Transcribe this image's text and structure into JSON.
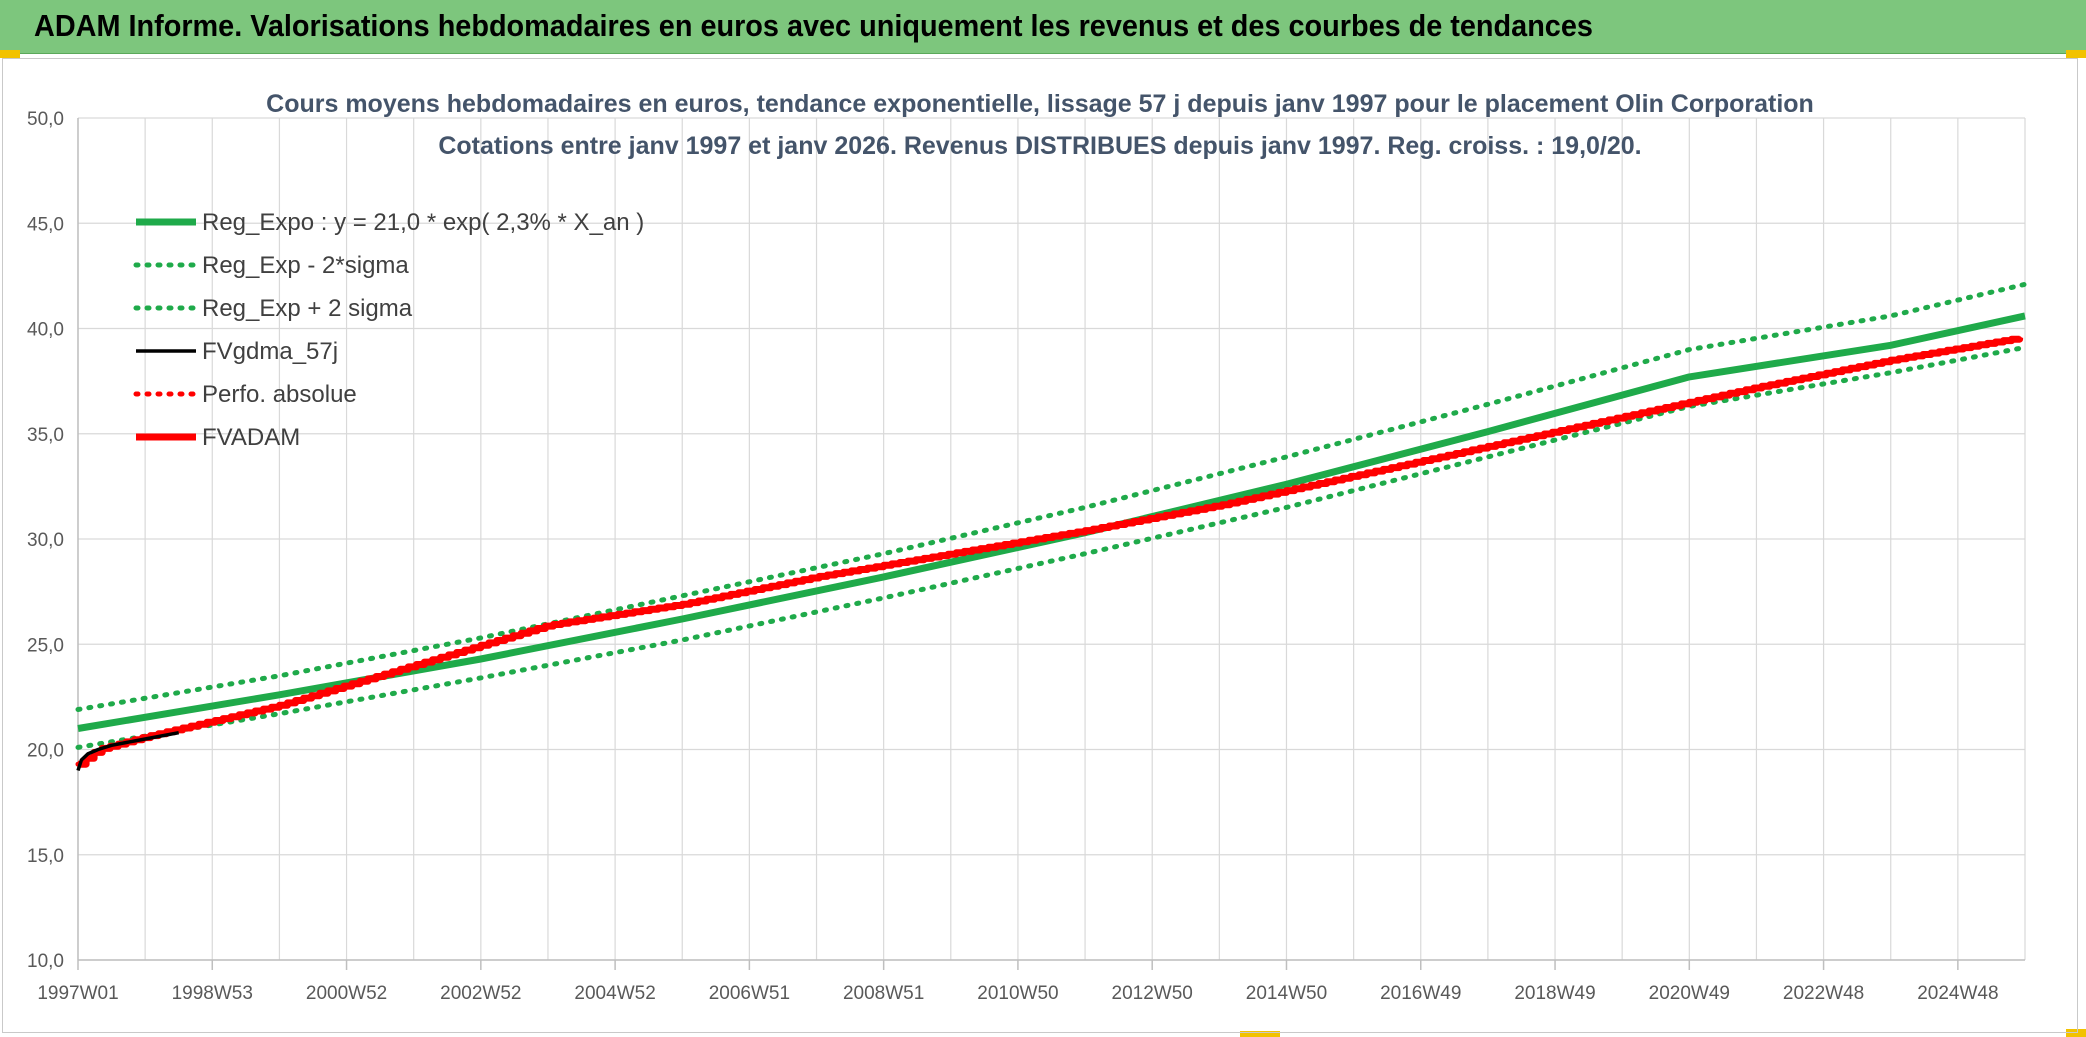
{
  "banner": {
    "title": "ADAM Informe. Valorisations hebdomadaires en euros avec uniquement les revenus et des courbes de tendances"
  },
  "colors": {
    "banner_bg": "#7dc67d",
    "accent_yellow": "#f2c200",
    "reg_green": "#1faa4a",
    "adam_red": "#ff0000",
    "gdma_black": "#000000",
    "grid": "#d9d9d9"
  },
  "chart_data": {
    "type": "line",
    "title": "Cours moyens hebdomadaires en euros, tendance exponentielle, lissage 57 j depuis janv 1997 pour le placement Olin Corporation",
    "subtitle": "Cotations entre janv 1997 et janv 2026. Revenus DISTRIBUES depuis janv 1997. Reg. croiss. : 19,0/20.",
    "ylim": [
      10,
      50
    ],
    "y_ticks": [
      "10,0",
      "15,0",
      "20,0",
      "25,0",
      "30,0",
      "35,0",
      "40,0",
      "45,0",
      "50,0"
    ],
    "x_ticks": [
      "1997W01",
      "1998W53",
      "2000W52",
      "2002W52",
      "2004W52",
      "2006W51",
      "2008W51",
      "2010W50",
      "2012W50",
      "2014W50",
      "2016W49",
      "2018W49",
      "2020W49",
      "2022W48",
      "2024W48"
    ],
    "xlim_years": [
      1997.0,
      2026.0
    ],
    "grid": true,
    "legend_position": "top-left",
    "series": [
      {
        "name": "Reg_Expo : y = 21,0 * exp( 2,3% *  X_an )",
        "style": "solid-thick",
        "color": "#1faa4a",
        "x": [
          1997,
          2000,
          2003,
          2006,
          2009,
          2012,
          2015,
          2018,
          2021,
          2024,
          2026
        ],
        "y": [
          21.0,
          22.6,
          24.3,
          26.2,
          28.2,
          30.3,
          32.6,
          35.1,
          37.7,
          39.2,
          40.6
        ]
      },
      {
        "name": "Reg_Exp - 2*sigma",
        "style": "dotted",
        "color": "#1faa4a",
        "x": [
          1997,
          2000,
          2003,
          2006,
          2009,
          2012,
          2015,
          2018,
          2021,
          2024,
          2026
        ],
        "y": [
          20.1,
          21.7,
          23.4,
          25.2,
          27.2,
          29.3,
          31.5,
          33.9,
          36.3,
          37.9,
          39.1
        ]
      },
      {
        "name": "Reg_Exp + 2 sigma",
        "style": "dotted",
        "color": "#1faa4a",
        "x": [
          1997,
          2000,
          2003,
          2006,
          2009,
          2012,
          2015,
          2018,
          2021,
          2024,
          2026
        ],
        "y": [
          21.9,
          23.5,
          25.3,
          27.3,
          29.3,
          31.5,
          33.9,
          36.4,
          39.0,
          40.6,
          42.1
        ]
      },
      {
        "name": "FVgdma_57j",
        "style": "solid",
        "color": "#000000",
        "x": [
          1997.0,
          1997.05,
          1997.15,
          1997.3,
          1997.5,
          1998.0,
          1998.5
        ],
        "y": [
          19.0,
          19.5,
          19.8,
          20.0,
          20.2,
          20.5,
          20.8
        ]
      },
      {
        "name": "Perfo. absolue",
        "style": "dotted",
        "color": "#ff0000",
        "x": [
          1997.0,
          1997.3,
          1998,
          2000,
          2002,
          2004,
          2006,
          2008,
          2010,
          2012,
          2014,
          2016,
          2018,
          2020,
          2022,
          2024,
          2026
        ],
        "y": [
          19.3,
          20.0,
          20.6,
          22.1,
          24.0,
          25.9,
          26.9,
          28.2,
          29.3,
          30.4,
          31.6,
          33.0,
          34.4,
          35.8,
          37.2,
          38.5,
          39.6
        ]
      },
      {
        "name": "FVADAM",
        "style": "solid-thick",
        "color": "#ff0000",
        "x": [
          1997.0,
          1997.3,
          1998,
          2000,
          2002,
          2004,
          2006,
          2008,
          2010,
          2012,
          2014,
          2016,
          2018,
          2020,
          2022,
          2024,
          2026
        ],
        "y": [
          19.3,
          20.0,
          20.6,
          22.1,
          24.0,
          25.9,
          26.9,
          28.2,
          29.3,
          30.4,
          31.6,
          33.0,
          34.4,
          35.8,
          37.2,
          38.5,
          39.6
        ]
      }
    ]
  }
}
